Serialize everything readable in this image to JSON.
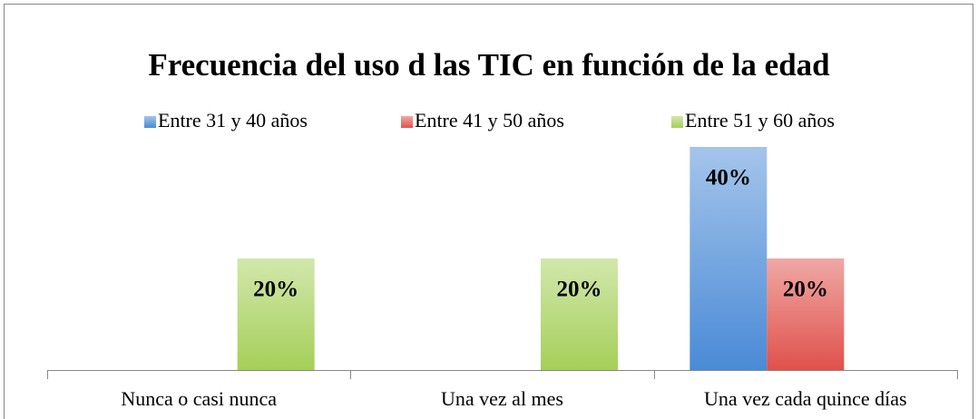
{
  "chart_data": {
    "type": "bar",
    "title": "Frecuencia del uso d las TIC en función de la edad",
    "categories": [
      "Nunca o casi nunca",
      "Una vez al mes",
      "Una vez cada quince días"
    ],
    "series": [
      {
        "name": "Entre 31 y 40 años",
        "color": "#4a8ad6",
        "values": [
          null,
          null,
          40
        ],
        "value_labels": [
          null,
          null,
          "40%"
        ]
      },
      {
        "name": "Entre 41 y 50 años",
        "color": "#e0514b",
        "values": [
          null,
          null,
          20
        ],
        "value_labels": [
          null,
          null,
          "20%"
        ]
      },
      {
        "name": "Entre 51 y 60 años",
        "color": "#a5cf59",
        "values": [
          20,
          20,
          null
        ],
        "value_labels": [
          "20%",
          "20%",
          null
        ]
      }
    ],
    "ylim": [
      0,
      40
    ],
    "legend": "top"
  }
}
